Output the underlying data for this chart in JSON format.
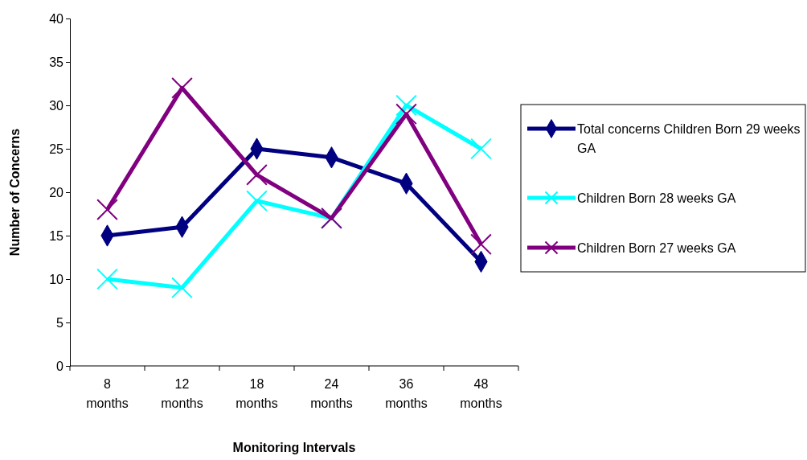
{
  "chart_data": {
    "type": "line",
    "xlabel": "Monitoring Intervals",
    "ylabel": "Number of Concerns",
    "categories": [
      "8 months",
      "12 months",
      "18 months",
      "24 months",
      "36 months",
      "48 months"
    ],
    "ylim": [
      0,
      40
    ],
    "yticks": [
      0,
      5,
      10,
      15,
      20,
      25,
      30,
      35,
      40
    ],
    "grid": false,
    "legend": "right",
    "series": [
      {
        "name": "Total concerns Children Born 29 weeks GA",
        "color": "#000080",
        "marker": "diamond",
        "values": [
          15,
          16,
          25,
          24,
          21,
          12
        ]
      },
      {
        "name": "Children Born 28 weeks GA",
        "color": "#00ffff",
        "marker": "cross",
        "values": [
          10,
          9,
          19,
          17,
          30,
          25
        ]
      },
      {
        "name": "Children Born 27 weeks GA",
        "color": "#800080",
        "marker": "cross",
        "values": [
          18,
          32,
          22,
          17,
          29,
          14
        ]
      }
    ]
  }
}
